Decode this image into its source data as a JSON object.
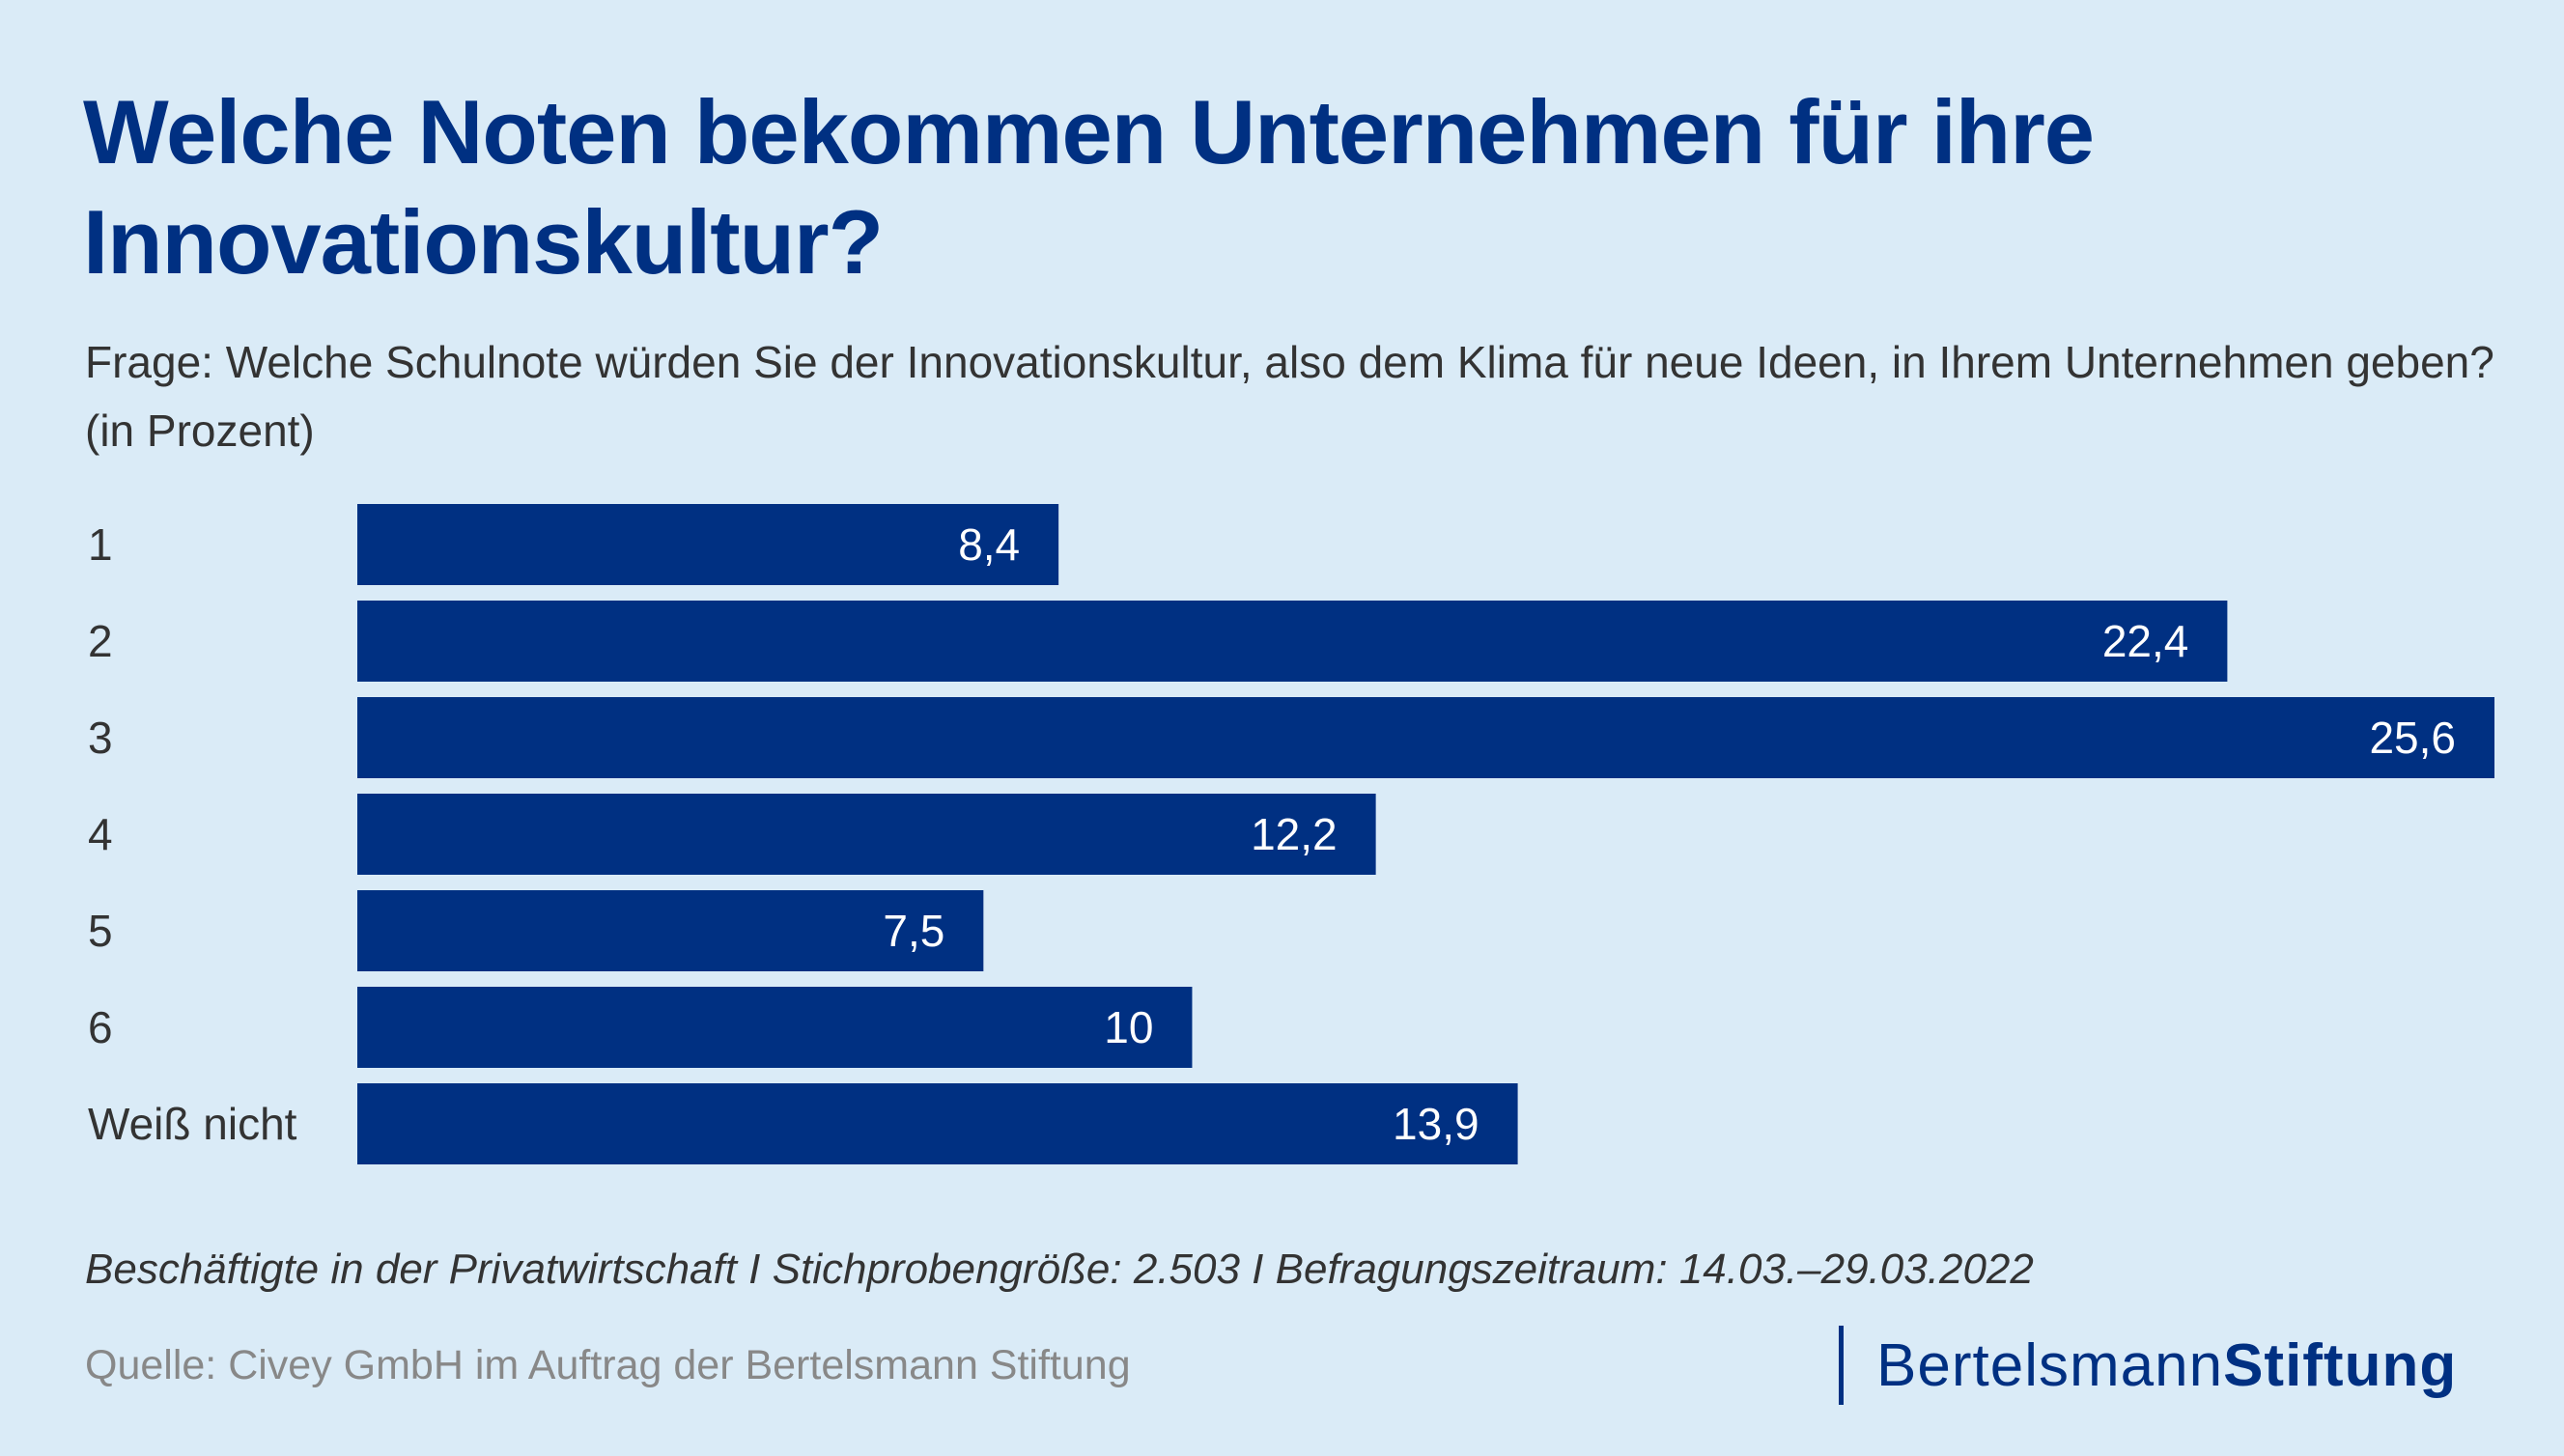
{
  "header": {
    "title": "Welche Noten bekommen Unternehmen für ihre Innovationskultur?",
    "subtitle": "Frage: Welche Schulnote würden Sie der Innovationskultur, also dem Klima für neue Ideen, in Ihrem Unternehmen geben? (in Prozent)"
  },
  "chart_data": {
    "type": "bar",
    "orientation": "horizontal",
    "title": "Welche Noten bekommen Unternehmen für ihre Innovationskultur?",
    "subtitle": "Frage: Welche Schulnote würden Sie der Innovationskultur, also dem Klima für neue Ideen, in Ihrem Unternehmen geben? (in Prozent)",
    "xlabel": "",
    "ylabel": "",
    "unit": "Prozent",
    "categories": [
      "1",
      "2",
      "3",
      "4",
      "5",
      "6",
      "Weiß nicht"
    ],
    "values": [
      8.4,
      22.4,
      25.6,
      12.2,
      7.5,
      10,
      13.9
    ],
    "value_labels": [
      "8,4",
      "22,4",
      "25,6",
      "12,2",
      "7,5",
      "10",
      "13,9"
    ],
    "xlim": [
      0,
      25.6
    ],
    "grid": false,
    "legend": "none",
    "bar_color": "#003082",
    "label_color": "#FFFFFF"
  },
  "footer": {
    "note": "Beschäftigte in der Privatwirtschaft I Stichprobengröße: 2.503 I Befragungszeitraum: 14.03.–29.03.2022",
    "source": "Quelle: Civey GmbH im Auftrag der Bertelsmann Stiftung"
  },
  "logo": {
    "part1": "Bertelsmann",
    "part2": "Stiftung"
  },
  "colors": {
    "background": "#DAEBF7",
    "accent": "#003082",
    "text": "#333333",
    "source_text": "#888888"
  }
}
